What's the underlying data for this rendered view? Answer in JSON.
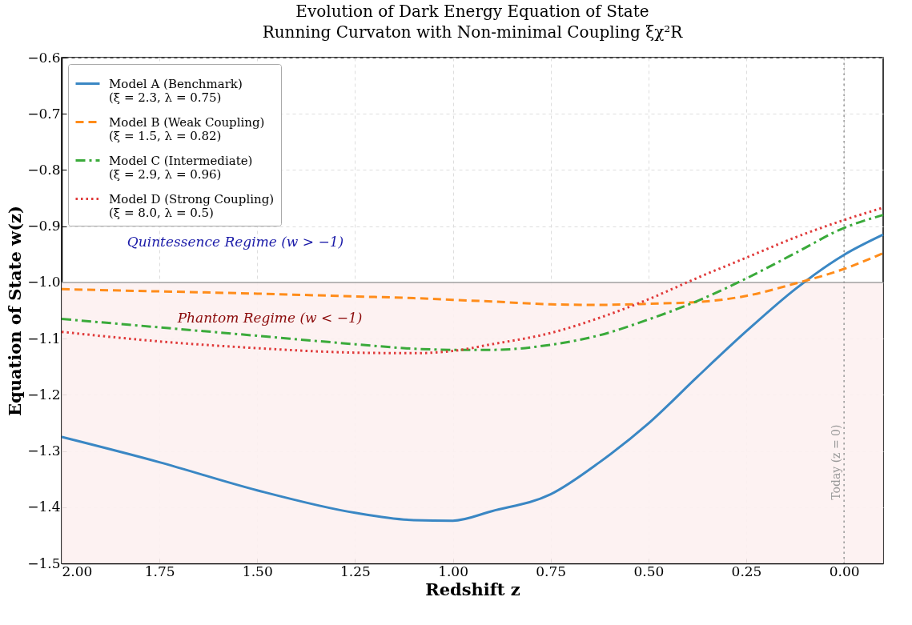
{
  "chart_data": {
    "type": "line",
    "title": "Evolution of Dark Energy Equation of State",
    "subtitle": "Running Curvaton with Non-minimal Coupling ξχ²R",
    "xlabel": "Redshift z",
    "ylabel": "Equation of State w(z)",
    "x": [
      2.0,
      1.75,
      1.5,
      1.25,
      1.1,
      1.0,
      0.9,
      0.75,
      0.625,
      0.5,
      0.375,
      0.25,
      0.125,
      0.0,
      -0.1
    ],
    "series": [
      {
        "name": "Model A (Benchmark)\n(ξ = 2.3, λ = 0.75)",
        "color": "#3a87c4",
        "line_style": "solid",
        "values": [
          -1.275,
          -1.32,
          -1.37,
          -1.41,
          -1.423,
          -1.424,
          -1.407,
          -1.377,
          -1.32,
          -1.251,
          -1.168,
          -1.087,
          -1.012,
          -0.951,
          -0.915
        ]
      },
      {
        "name": "Model B (Weak Coupling)\n(ξ = 1.5, λ = 0.82)",
        "color": "#ff8c1a",
        "line_style": "dashed",
        "values": [
          -1.012,
          -1.016,
          -1.02,
          -1.025,
          -1.028,
          -1.031,
          -1.034,
          -1.039,
          -1.04,
          -1.038,
          -1.035,
          -1.024,
          -1.002,
          -0.976,
          -0.948
        ]
      },
      {
        "name": "Model C (Intermediate)\n(ξ = 2.9, λ = 0.96)",
        "color": "#3aaa3a",
        "line_style": "dashdot",
        "values": [
          -1.065,
          -1.08,
          -1.095,
          -1.11,
          -1.118,
          -1.12,
          -1.12,
          -1.111,
          -1.094,
          -1.066,
          -1.033,
          -0.993,
          -0.948,
          -0.903,
          -0.88
        ]
      },
      {
        "name": "Model D (Strong Coupling)\n(ξ = 8.0, λ = 0.5)",
        "color": "#e03a3a",
        "line_style": "dotted",
        "values": [
          -1.088,
          -1.105,
          -1.117,
          -1.125,
          -1.126,
          -1.122,
          -1.11,
          -1.09,
          -1.063,
          -1.03,
          -0.992,
          -0.956,
          -0.92,
          -0.889,
          -0.867
        ]
      }
    ],
    "xlim": [
      2.0,
      -0.1
    ],
    "xticks": [
      {
        "value": 2.0,
        "label": "2.00"
      },
      {
        "value": 1.75,
        "label": "1.75"
      },
      {
        "value": 1.5,
        "label": "1.50"
      },
      {
        "value": 1.25,
        "label": "1.25"
      },
      {
        "value": 1.0,
        "label": "1.00"
      },
      {
        "value": 0.75,
        "label": "0.75"
      },
      {
        "value": 0.5,
        "label": "0.50"
      },
      {
        "value": 0.25,
        "label": "0.25"
      },
      {
        "value": 0.0,
        "label": "0.00"
      }
    ],
    "ylim": [
      -1.5,
      -0.6
    ],
    "yticks": [
      {
        "value": -1.5,
        "label": "−1.5"
      },
      {
        "value": -1.4,
        "label": "−1.4"
      },
      {
        "value": -1.3,
        "label": "−1.3"
      },
      {
        "value": -1.2,
        "label": "−1.2"
      },
      {
        "value": -1.1,
        "label": "−1.1"
      },
      {
        "value": -1.0,
        "label": "−1.0"
      },
      {
        "value": -0.9,
        "label": "−0.9"
      },
      {
        "value": -0.8,
        "label": "−0.8"
      },
      {
        "value": -0.7,
        "label": "−0.7"
      },
      {
        "value": -0.6,
        "label": "−0.6"
      }
    ],
    "grid": true,
    "legend": "top left",
    "ref_lines": [
      {
        "axis": "y",
        "value": -1.0,
        "color": "#a0a0a0",
        "line_style": "solid"
      },
      {
        "axis": "x",
        "value": 0.0,
        "label": "Today (z = 0)",
        "color": "#999999",
        "line_style": "dotted"
      }
    ],
    "bands": [
      {
        "axis": "y",
        "from": -1.5,
        "to": -1.0,
        "color": "#fdf1f1"
      }
    ],
    "annotations": [
      "Quintessence Regime (w > −1)",
      "Phantom Regime (w < −1)"
    ]
  }
}
